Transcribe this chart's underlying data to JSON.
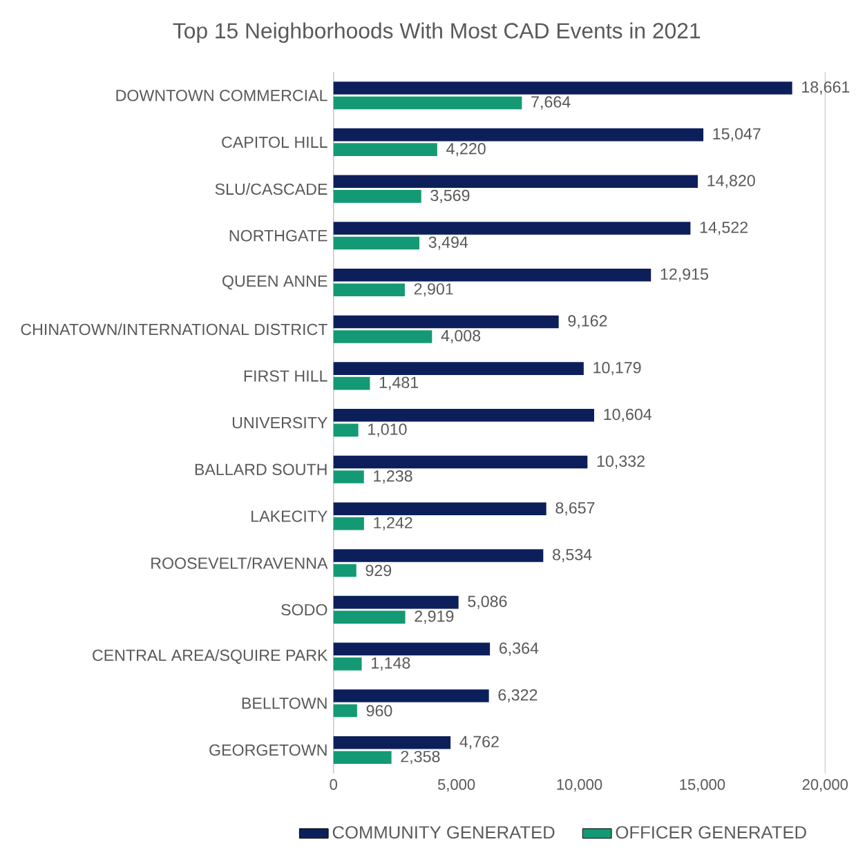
{
  "chart_data": {
    "type": "bar",
    "orientation": "horizontal",
    "title": "Top 15 Neighborhoods With Most CAD Events in 2021",
    "categories": [
      "DOWNTOWN COMMERCIAL",
      "CAPITOL HILL",
      "SLU/CASCADE",
      "NORTHGATE",
      "QUEEN ANNE",
      "CHINATOWN/INTERNATIONAL DISTRICT",
      "FIRST HILL",
      "UNIVERSITY",
      "BALLARD SOUTH",
      "LAKECITY",
      "ROOSEVELT/RAVENNA",
      "SODO",
      "CENTRAL AREA/SQUIRE PARK",
      "BELLTOWN",
      "GEORGETOWN"
    ],
    "series": [
      {
        "name": "COMMUNITY GENERATED",
        "color": "#0d1f5b",
        "values": [
          18661,
          15047,
          14820,
          14522,
          12915,
          9162,
          10179,
          10604,
          10332,
          8657,
          8534,
          5086,
          6364,
          6322,
          4762
        ],
        "value_labels": [
          "18,661",
          "15,047",
          "14,820",
          "14,522",
          "12,915",
          "9,162",
          "10,179",
          "10,604",
          "10,332",
          "8,657",
          "8,534",
          "5,086",
          "6,364",
          "6,322",
          "4,762"
        ]
      },
      {
        "name": "OFFICER GENERATED",
        "color": "#139a74",
        "values": [
          7664,
          4220,
          3569,
          3494,
          2901,
          4008,
          1481,
          1010,
          1238,
          1242,
          929,
          2919,
          1148,
          960,
          2358
        ],
        "value_labels": [
          "7,664",
          "4,220",
          "3,569",
          "3,494",
          "2,901",
          "4,008",
          "1,481",
          "1,010",
          "1,238",
          "1,242",
          "929",
          "2,919",
          "1,148",
          "960",
          "2,358"
        ]
      }
    ],
    "xlim": [
      0,
      20000
    ],
    "xticks": [
      0,
      {
        "value": 5000,
        "label": "5,000"
      },
      {
        "value": 10000,
        "label": "10,000"
      },
      {
        "value": 15000,
        "label": "15,000"
      },
      {
        "value": 20000,
        "label": "20,000"
      }
    ],
    "legend": "bottom",
    "grid": false
  }
}
